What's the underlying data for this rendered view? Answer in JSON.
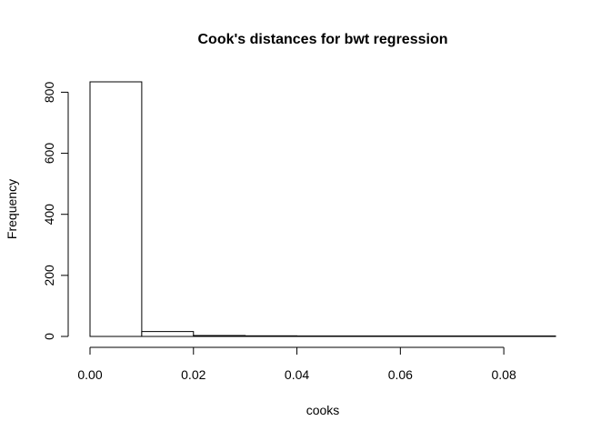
{
  "chart_data": {
    "type": "bar",
    "subtype": "histogram",
    "title": "Cook's distances for bwt regression",
    "xlabel": "cooks",
    "ylabel": "Frequency",
    "bins": [
      {
        "start": 0.0,
        "end": 0.01,
        "count": 834
      },
      {
        "start": 0.01,
        "end": 0.02,
        "count": 16
      },
      {
        "start": 0.02,
        "end": 0.03,
        "count": 3
      },
      {
        "start": 0.03,
        "end": 0.04,
        "count": 2
      },
      {
        "start": 0.04,
        "end": 0.05,
        "count": 1
      },
      {
        "start": 0.05,
        "end": 0.06,
        "count": 1
      },
      {
        "start": 0.06,
        "end": 0.07,
        "count": 1
      },
      {
        "start": 0.07,
        "end": 0.08,
        "count": 1
      },
      {
        "start": 0.08,
        "end": 0.09,
        "count": 1
      }
    ],
    "xlim": [
      0.0,
      0.09
    ],
    "ylim": [
      0,
      834
    ],
    "xticks": [
      0.0,
      0.02,
      0.04,
      0.06,
      0.08
    ],
    "xtick_labels": [
      "0.00",
      "0.02",
      "0.04",
      "0.06",
      "0.08"
    ],
    "yticks": [
      0,
      200,
      400,
      600,
      800
    ],
    "ytick_labels": [
      "0",
      "200",
      "400",
      "600",
      "800"
    ],
    "grid": false,
    "bar_fill": "#ffffff",
    "bar_stroke": "#000000"
  }
}
